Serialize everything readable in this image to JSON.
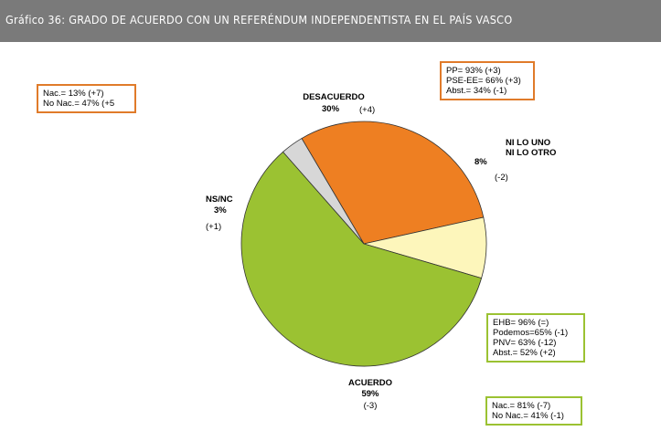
{
  "header": {
    "title": "Gráfico 36: GRADO DE ACUERDO CON UN REFERÉNDUM INDEPENDENTISTA EN EL PAÍS VASCO"
  },
  "chart_data": {
    "type": "pie",
    "slices": [
      {
        "name": "DESACUERDO",
        "value": 30,
        "pct_label": "30%",
        "change": "(+4)",
        "color": "#ee7f22"
      },
      {
        "name": "NI LO UNO NI LO OTRO",
        "name_lines": [
          "NI LO UNO",
          "NI LO OTRO"
        ],
        "value": 8,
        "pct_label": "8%",
        "change": "(-2)",
        "color": "#fdf6bb"
      },
      {
        "name": "ACUERDO",
        "value": 59,
        "pct_label": "59%",
        "change": "(-3)",
        "color": "#9bc232"
      },
      {
        "name": "NS/NC",
        "value": 3,
        "pct_label": "3%",
        "change": "(+1)",
        "color": "#d7d7d7"
      }
    ],
    "start_angle_deg": -30.5
  },
  "annotations": {
    "desacuerdo_left": [
      "Nac.= 13% (+7)",
      "No Nac.= 47% (+5"
    ],
    "desacuerdo_right": [
      "PP= 93% (+3)",
      "PSE-EE= 66% (+3)",
      "Abst.= 34% (-1)"
    ],
    "acuerdo_parties": [
      "EHB= 96% (=)",
      "Podemos=65% (-1)",
      "PNV= 63% (-12)",
      "Abst.= 52% (+2)"
    ],
    "acuerdo_nac": [
      "Nac.= 81% (-7)",
      "No Nac.= 41% (-1)"
    ]
  },
  "colors": {
    "header_bg": "#7a7a7a",
    "box_orange": "#e07b2a",
    "box_green": "#9bc232"
  }
}
